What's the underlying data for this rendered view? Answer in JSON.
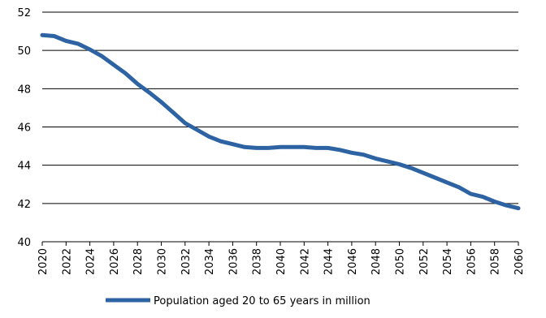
{
  "chart_data": {
    "type": "line",
    "title": "",
    "xlabel": "",
    "ylabel": "",
    "ylim": [
      40,
      52
    ],
    "yticks": [
      40,
      42,
      44,
      46,
      48,
      50,
      52
    ],
    "xlim": [
      2020,
      2060
    ],
    "xticks": [
      2020,
      2022,
      2024,
      2026,
      2028,
      2030,
      2032,
      2034,
      2036,
      2038,
      2040,
      2042,
      2044,
      2046,
      2048,
      2050,
      2052,
      2054,
      2056,
      2058,
      2060
    ],
    "grid": "horizontal",
    "legend_position": "bottom",
    "series": [
      {
        "name": "Population aged 20 to 65 years in million",
        "color": "#2e63a3",
        "x": [
          2020,
          2021,
          2022,
          2023,
          2024,
          2025,
          2026,
          2027,
          2028,
          2029,
          2030,
          2031,
          2032,
          2033,
          2034,
          2035,
          2036,
          2037,
          2038,
          2039,
          2040,
          2041,
          2042,
          2043,
          2044,
          2045,
          2046,
          2047,
          2048,
          2049,
          2050,
          2051,
          2052,
          2053,
          2054,
          2055,
          2056,
          2057,
          2058,
          2059,
          2060
        ],
        "values": [
          50.8,
          50.75,
          50.5,
          50.35,
          50.05,
          49.7,
          49.25,
          48.8,
          48.25,
          47.8,
          47.3,
          46.75,
          46.2,
          45.85,
          45.5,
          45.25,
          45.1,
          44.95,
          44.9,
          44.9,
          44.95,
          44.95,
          44.95,
          44.9,
          44.9,
          44.8,
          44.65,
          44.55,
          44.35,
          44.2,
          44.05,
          43.85,
          43.6,
          43.35,
          43.1,
          42.85,
          42.5,
          42.35,
          42.1,
          41.9,
          41.75
        ]
      }
    ]
  }
}
